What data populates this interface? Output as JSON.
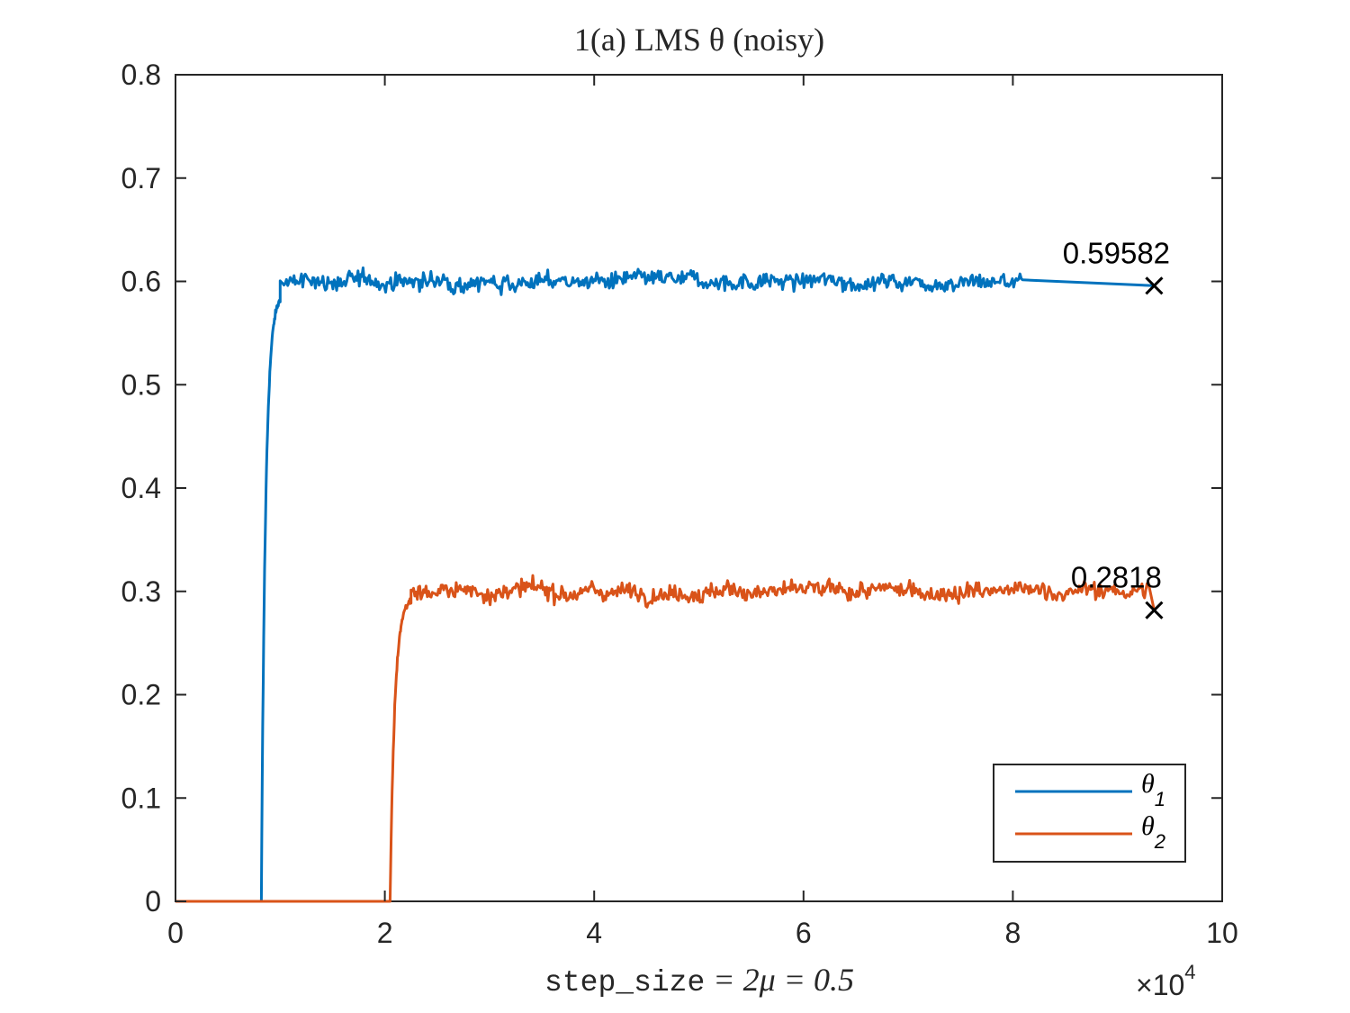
{
  "chart_data": {
    "type": "line",
    "title": "1(a) LMS θ (noisy)",
    "xlabel": {
      "mono": "step_size",
      "math": " = 2μ = 0.5"
    },
    "x_multiplier": "×10",
    "x_multiplier_exp": "4",
    "xlim": [
      0,
      100000
    ],
    "ylim": [
      0,
      0.8
    ],
    "xticks": [
      0,
      20000,
      40000,
      60000,
      80000,
      100000
    ],
    "xtick_labels": [
      "0",
      "2",
      "4",
      "6",
      "8",
      "10"
    ],
    "yticks": [
      0,
      0.1,
      0.2,
      0.3,
      0.4,
      0.5,
      0.6,
      0.7,
      0.8
    ],
    "ytick_labels": [
      "0",
      "0.1",
      "0.2",
      "0.3",
      "0.4",
      "0.5",
      "0.6",
      "0.7",
      "0.8"
    ],
    "grid": false,
    "legend_position": "bottom-right",
    "series": [
      {
        "name": "θ",
        "name_sub": "1",
        "color": "#0072BD",
        "start_x": 8200,
        "rise_end_x": 10000,
        "level": 0.6,
        "noise_amplitude": 0.012,
        "noisy_end_x": 81000,
        "final_x": 93500,
        "final_value": 0.59582,
        "final_label": "0.59582"
      },
      {
        "name": "θ",
        "name_sub": "2",
        "color": "#D95319",
        "start_x": 20500,
        "rise_end_x": 22500,
        "level": 0.3,
        "noise_amplitude": 0.012,
        "noisy_end_x": 93000,
        "final_x": 93500,
        "final_value": 0.2818,
        "final_label": "0.2818"
      }
    ]
  }
}
